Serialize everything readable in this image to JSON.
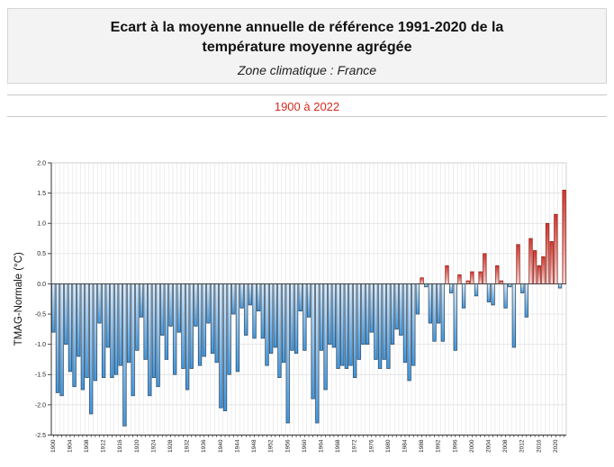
{
  "header": {
    "title": "Ecart à la moyenne annuelle de référence 1991-2020  de la température moyenne  agrégée",
    "subtitle": "Zone climatique : France"
  },
  "period": {
    "label": "1900 à 2022",
    "color": "#d22b21"
  },
  "chart_data": {
    "type": "bar",
    "title": "Ecart à la moyenne annuelle de référence 1991-2020 de la température moyenne agrégée",
    "subtitle": "Zone climatique : France",
    "period": "1900 à 2022",
    "xlabel": "",
    "ylabel": "TMAG-Normale (°C)",
    "x_range": [
      1900,
      2022
    ],
    "x_tick_every": 4,
    "ylim": [
      -2.5,
      2.0
    ],
    "ytick_step": 0.5,
    "grid": true,
    "legend": "none",
    "values": [
      -0.8,
      -1.8,
      -1.85,
      -1.0,
      -1.45,
      -1.7,
      -1.2,
      -1.75,
      -1.55,
      -2.15,
      -1.6,
      -0.65,
      -1.55,
      -1.05,
      -1.55,
      -1.5,
      -1.35,
      -2.35,
      -1.3,
      -1.85,
      -1.1,
      -0.55,
      -1.25,
      -1.85,
      -1.55,
      -1.7,
      -0.85,
      -1.25,
      -0.7,
      -1.5,
      -0.8,
      -1.4,
      -1.75,
      -1.4,
      -0.7,
      -1.35,
      -1.2,
      -0.65,
      -1.15,
      -1.3,
      -2.05,
      -2.1,
      -1.5,
      -0.5,
      -1.45,
      -0.4,
      -0.85,
      -0.35,
      -0.9,
      -0.45,
      -0.9,
      -1.35,
      -1.15,
      -1.05,
      -1.55,
      -1.3,
      -2.3,
      -1.1,
      -1.15,
      -0.45,
      -1.1,
      -0.55,
      -1.9,
      -2.3,
      -1.1,
      -1.75,
      -1.0,
      -1.05,
      -1.4,
      -1.35,
      -1.4,
      -1.35,
      -1.55,
      -1.25,
      -1.0,
      -1.0,
      -0.8,
      -1.25,
      -1.4,
      -1.25,
      -1.4,
      -1.0,
      -0.75,
      -0.85,
      -1.3,
      -1.6,
      -1.35,
      -0.5,
      0.1,
      -0.05,
      -0.65,
      -0.95,
      -0.65,
      -0.95,
      0.3,
      -0.15,
      -1.1,
      0.15,
      -0.4,
      0.05,
      0.2,
      -0.2,
      0.2,
      0.5,
      -0.3,
      -0.35,
      0.3,
      0.05,
      -0.4,
      -0.05,
      -1.05,
      0.65,
      -0.15,
      -0.55,
      0.75,
      0.55,
      0.3,
      0.45,
      1.0,
      0.7,
      1.15,
      -0.07,
      1.55
    ],
    "colors": {
      "bar_negative_top": "#dcecfb",
      "bar_negative_bottom": "#3e97e0",
      "bar_negative_border": "#31475c",
      "bar_positive_top": "#d5352b",
      "bar_positive_bottom": "#f6dad6",
      "bar_positive_border": "#8e1f1a",
      "grid_vertical": "#e3e3e3",
      "grid_horizontal": "#dcdcdc",
      "axis": "#333333",
      "zero_line": "#3a3a3a"
    }
  }
}
